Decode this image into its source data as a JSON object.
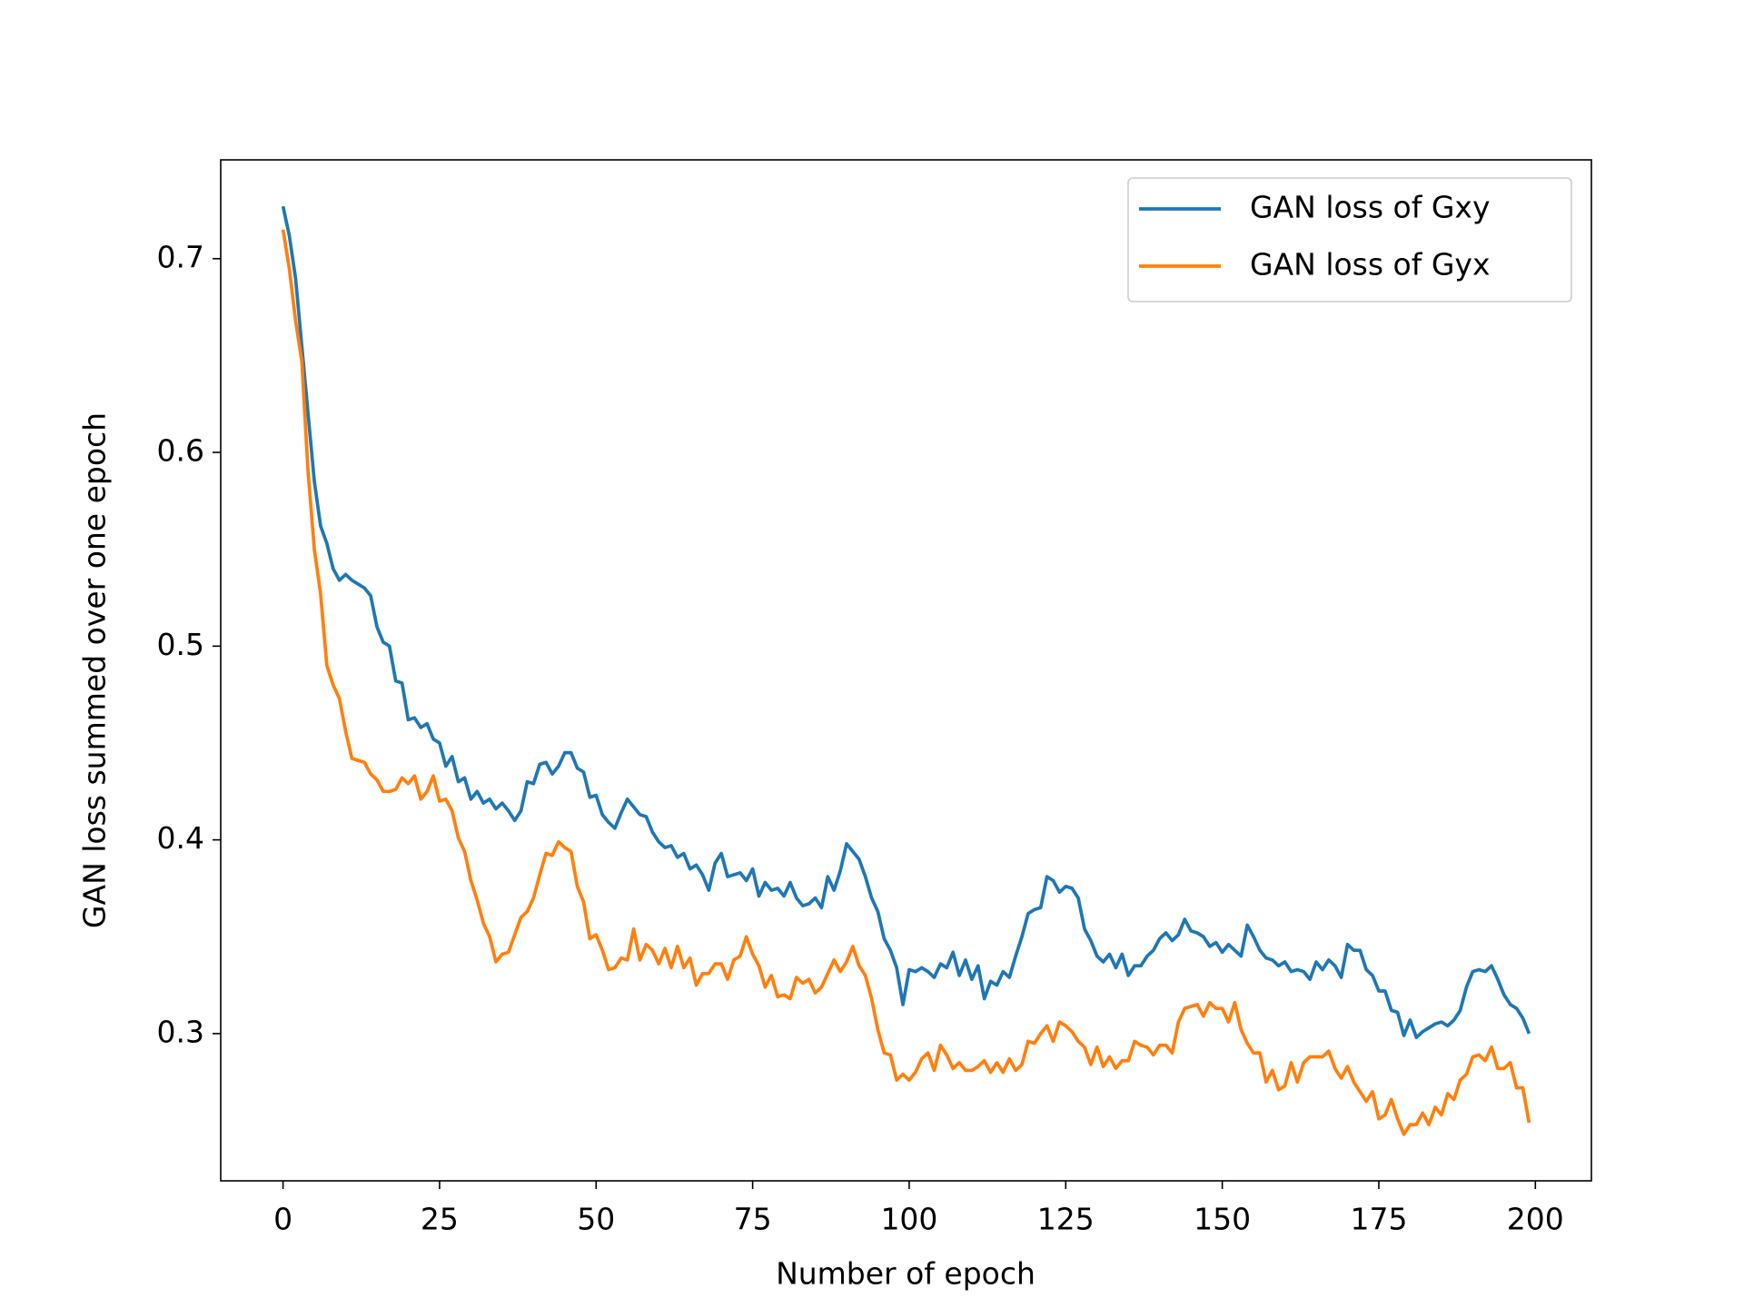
{
  "chart_data": {
    "type": "line",
    "xlabel": "Number of epoch",
    "ylabel": "GAN loss summed over one epoch",
    "x": [
      0,
      1,
      2,
      3,
      4,
      5,
      6,
      7,
      8,
      9,
      10,
      11,
      12,
      13,
      14,
      15,
      16,
      17,
      18,
      19,
      20,
      21,
      22,
      23,
      24,
      25,
      26,
      27,
      28,
      29,
      30,
      31,
      32,
      33,
      34,
      35,
      36,
      37,
      38,
      39,
      40,
      41,
      42,
      43,
      44,
      45,
      46,
      47,
      48,
      49,
      50,
      51,
      52,
      53,
      54,
      55,
      56,
      57,
      58,
      59,
      60,
      61,
      62,
      63,
      64,
      65,
      66,
      67,
      68,
      69,
      70,
      71,
      72,
      73,
      74,
      75,
      76,
      77,
      78,
      79,
      80,
      81,
      82,
      83,
      84,
      85,
      86,
      87,
      88,
      89,
      90,
      91,
      92,
      93,
      94,
      95,
      96,
      97,
      98,
      99,
      100,
      101,
      102,
      103,
      104,
      105,
      106,
      107,
      108,
      109,
      110,
      111,
      112,
      113,
      114,
      115,
      116,
      117,
      118,
      119,
      120,
      121,
      122,
      123,
      124,
      125,
      126,
      127,
      128,
      129,
      130,
      131,
      132,
      133,
      134,
      135,
      136,
      137,
      138,
      139,
      140,
      141,
      142,
      143,
      144,
      145,
      146,
      147,
      148,
      149,
      150,
      151,
      152,
      153,
      154,
      155,
      156,
      157,
      158,
      159,
      160,
      161,
      162,
      163,
      164,
      165,
      166,
      167,
      168,
      169,
      170,
      171,
      172,
      173,
      174,
      175,
      176,
      177,
      178,
      179,
      180,
      181,
      182,
      183,
      184,
      185,
      186,
      187,
      188,
      189,
      190,
      191,
      192,
      193,
      194,
      195,
      196,
      197,
      198,
      199
    ],
    "series": [
      {
        "name": "GAN loss of Gxy",
        "color": "#1f77b4",
        "values": [
          0.727,
          0.712,
          0.69,
          0.655,
          0.62,
          0.585,
          0.562,
          0.553,
          0.54,
          0.534,
          0.537,
          0.534,
          0.532,
          0.53,
          0.526,
          0.51,
          0.502,
          0.5,
          0.482,
          0.481,
          0.462,
          0.463,
          0.458,
          0.46,
          0.452,
          0.45,
          0.438,
          0.443,
          0.43,
          0.432,
          0.421,
          0.425,
          0.419,
          0.421,
          0.416,
          0.419,
          0.415,
          0.41,
          0.415,
          0.43,
          0.429,
          0.439,
          0.44,
          0.434,
          0.438,
          0.445,
          0.445,
          0.437,
          0.435,
          0.422,
          0.423,
          0.413,
          0.409,
          0.406,
          0.414,
          0.421,
          0.417,
          0.413,
          0.412,
          0.404,
          0.399,
          0.396,
          0.397,
          0.391,
          0.393,
          0.385,
          0.387,
          0.382,
          0.374,
          0.388,
          0.393,
          0.381,
          0.382,
          0.383,
          0.379,
          0.385,
          0.371,
          0.378,
          0.374,
          0.375,
          0.371,
          0.378,
          0.37,
          0.366,
          0.367,
          0.37,
          0.365,
          0.381,
          0.374,
          0.384,
          0.398,
          0.394,
          0.39,
          0.381,
          0.37,
          0.363,
          0.349,
          0.343,
          0.334,
          0.315,
          0.333,
          0.332,
          0.334,
          0.332,
          0.329,
          0.336,
          0.334,
          0.342,
          0.33,
          0.338,
          0.328,
          0.335,
          0.318,
          0.327,
          0.325,
          0.332,
          0.329,
          0.34,
          0.35,
          0.362,
          0.364,
          0.365,
          0.381,
          0.379,
          0.373,
          0.376,
          0.375,
          0.37,
          0.354,
          0.348,
          0.34,
          0.337,
          0.341,
          0.334,
          0.341,
          0.33,
          0.335,
          0.335,
          0.34,
          0.343,
          0.349,
          0.352,
          0.348,
          0.351,
          0.359,
          0.353,
          0.352,
          0.35,
          0.345,
          0.347,
          0.342,
          0.346,
          0.343,
          0.34,
          0.356,
          0.35,
          0.343,
          0.339,
          0.338,
          0.335,
          0.337,
          0.332,
          0.333,
          0.332,
          0.328,
          0.337,
          0.333,
          0.338,
          0.335,
          0.329,
          0.346,
          0.343,
          0.343,
          0.333,
          0.33,
          0.322,
          0.322,
          0.312,
          0.311,
          0.299,
          0.307,
          0.298,
          0.301,
          0.303,
          0.305,
          0.306,
          0.304,
          0.307,
          0.312,
          0.324,
          0.332,
          0.333,
          0.332,
          0.335,
          0.328,
          0.32,
          0.315,
          0.313,
          0.308,
          0.3
        ]
      },
      {
        "name": "GAN loss of Gyx",
        "color": "#ff7f0e",
        "values": [
          0.715,
          0.695,
          0.668,
          0.647,
          0.59,
          0.55,
          0.527,
          0.49,
          0.48,
          0.473,
          0.456,
          0.442,
          0.441,
          0.44,
          0.434,
          0.431,
          0.425,
          0.425,
          0.426,
          0.432,
          0.429,
          0.433,
          0.421,
          0.425,
          0.433,
          0.42,
          0.421,
          0.415,
          0.401,
          0.394,
          0.379,
          0.369,
          0.357,
          0.35,
          0.337,
          0.341,
          0.342,
          0.351,
          0.36,
          0.363,
          0.37,
          0.382,
          0.393,
          0.392,
          0.399,
          0.396,
          0.394,
          0.376,
          0.368,
          0.349,
          0.351,
          0.343,
          0.333,
          0.334,
          0.339,
          0.338,
          0.354,
          0.338,
          0.346,
          0.343,
          0.336,
          0.344,
          0.334,
          0.345,
          0.334,
          0.339,
          0.325,
          0.331,
          0.331,
          0.336,
          0.336,
          0.328,
          0.338,
          0.34,
          0.35,
          0.341,
          0.335,
          0.324,
          0.33,
          0.319,
          0.32,
          0.318,
          0.329,
          0.326,
          0.328,
          0.321,
          0.324,
          0.331,
          0.338,
          0.332,
          0.337,
          0.345,
          0.335,
          0.33,
          0.318,
          0.302,
          0.29,
          0.289,
          0.276,
          0.279,
          0.276,
          0.28,
          0.287,
          0.29,
          0.281,
          0.294,
          0.289,
          0.282,
          0.285,
          0.281,
          0.281,
          0.283,
          0.286,
          0.28,
          0.285,
          0.28,
          0.287,
          0.281,
          0.284,
          0.296,
          0.295,
          0.3,
          0.304,
          0.296,
          0.306,
          0.304,
          0.301,
          0.296,
          0.293,
          0.284,
          0.293,
          0.283,
          0.288,
          0.282,
          0.286,
          0.286,
          0.296,
          0.294,
          0.293,
          0.289,
          0.294,
          0.294,
          0.29,
          0.306,
          0.313,
          0.314,
          0.315,
          0.309,
          0.316,
          0.313,
          0.313,
          0.306,
          0.316,
          0.302,
          0.295,
          0.29,
          0.29,
          0.275,
          0.281,
          0.271,
          0.273,
          0.285,
          0.275,
          0.285,
          0.288,
          0.288,
          0.288,
          0.291,
          0.282,
          0.277,
          0.283,
          0.275,
          0.27,
          0.265,
          0.27,
          0.256,
          0.258,
          0.266,
          0.256,
          0.248,
          0.253,
          0.253,
          0.259,
          0.253,
          0.262,
          0.258,
          0.269,
          0.266,
          0.276,
          0.279,
          0.288,
          0.289,
          0.286,
          0.293,
          0.282,
          0.282,
          0.285,
          0.272,
          0.272,
          0.254
        ]
      }
    ],
    "xlim": [
      -9.95,
      208.95
    ],
    "ylim": [
      0.224,
      0.751
    ],
    "xticks": [
      0,
      25,
      50,
      75,
      100,
      125,
      150,
      175,
      200
    ],
    "yticks": [
      0.3,
      0.4,
      0.5,
      0.6,
      0.7
    ],
    "legend": "upper right",
    "grid": false
  }
}
